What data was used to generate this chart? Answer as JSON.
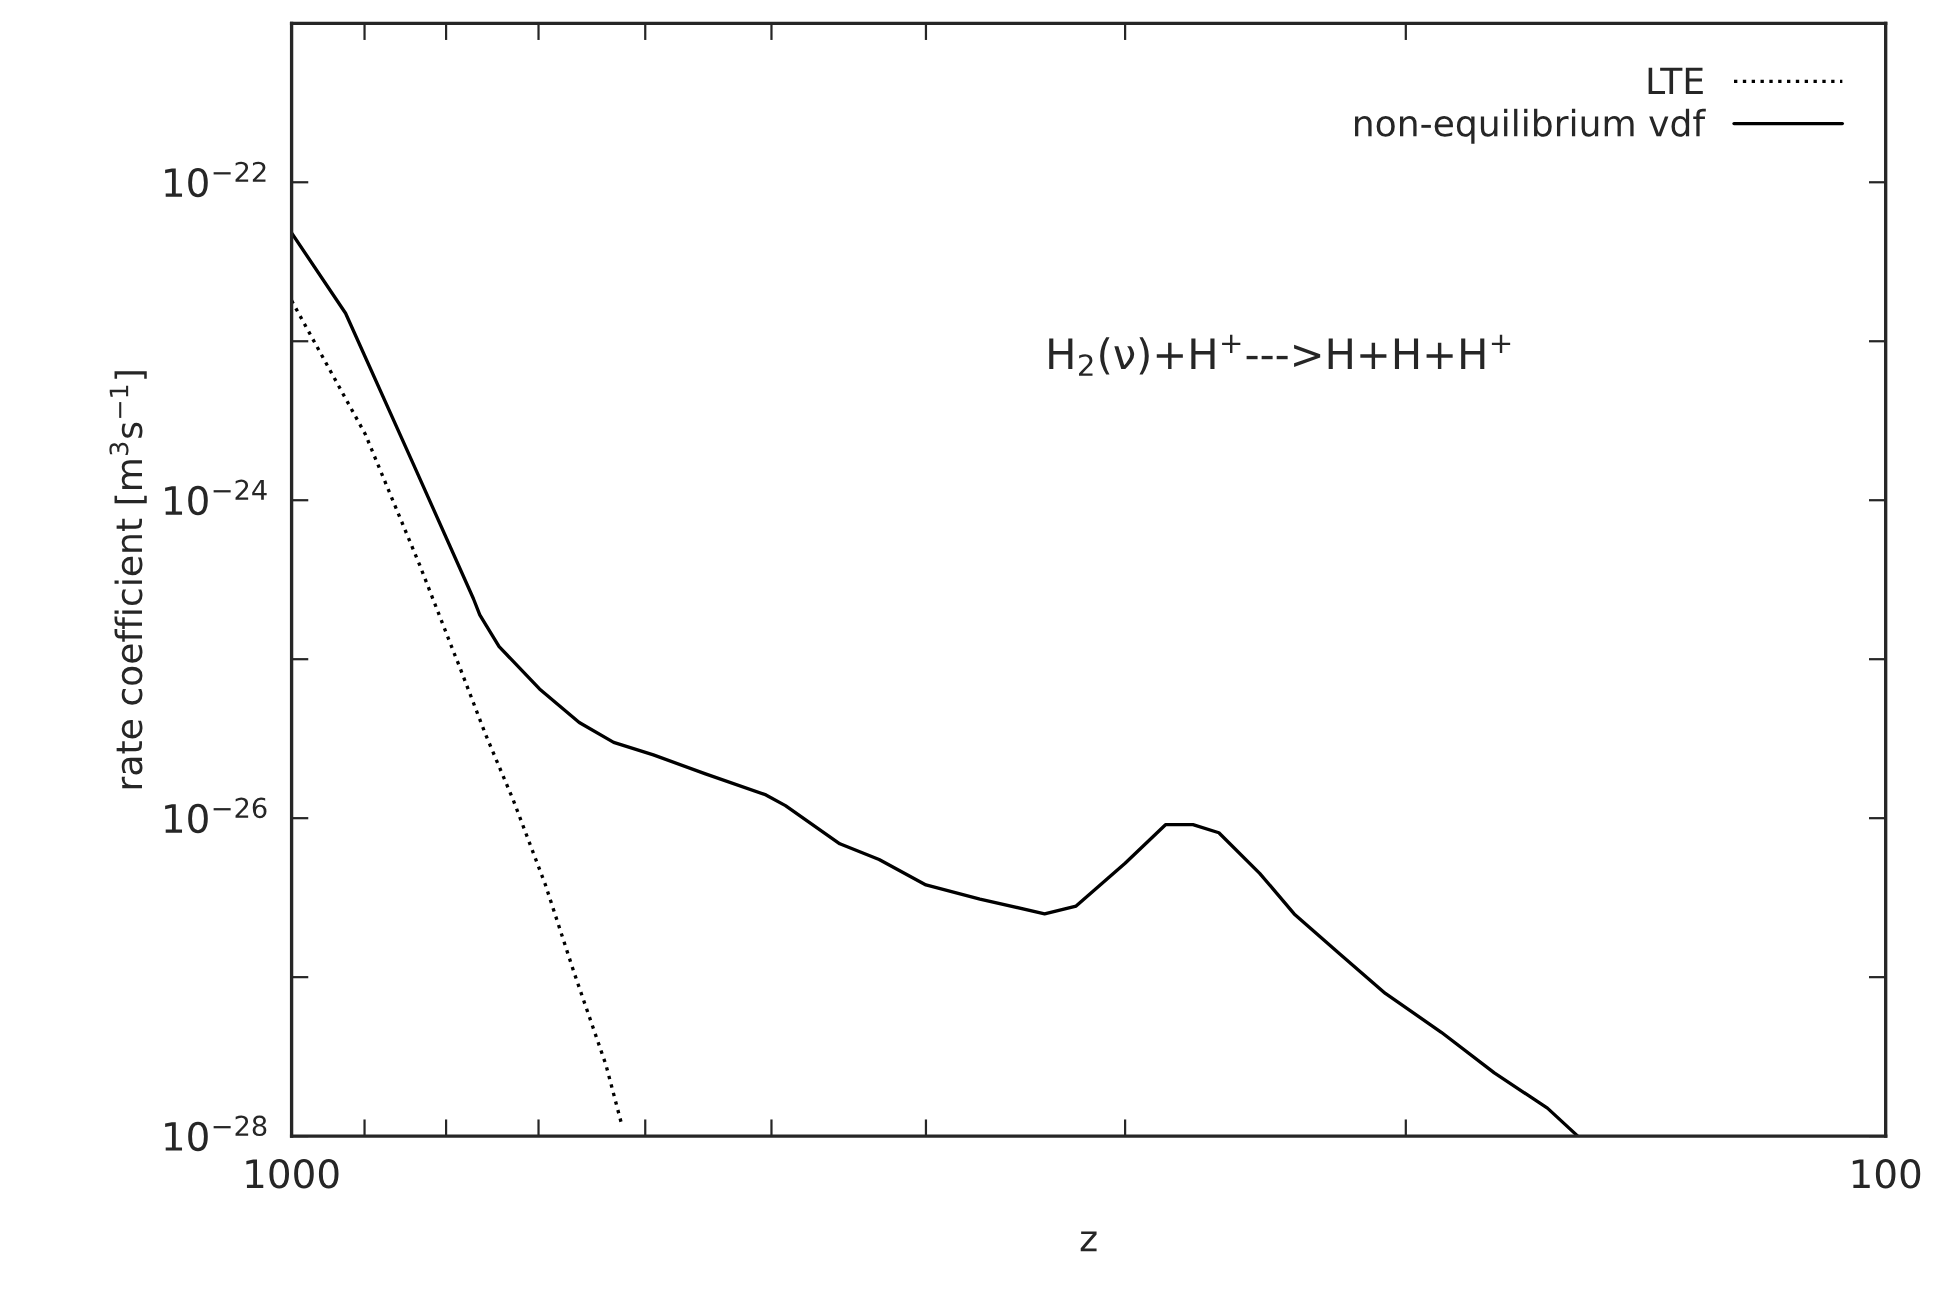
{
  "chart_data": {
    "type": "line",
    "xlabel": "z",
    "ylabel": "rate coefficient [m$^{3}$s$^{−1}$]",
    "annotations": [
      "H$_{2}$(ν)+H$^{+}$--->H+H+H$^{+}$"
    ],
    "log": "xy",
    "xlim": [
      1000,
      100
    ],
    "ylim": [
      1e-28,
      1e-21
    ],
    "xticks": [
      1000,
      {
        "value": 900,
        "label": null
      },
      {
        "value": 800,
        "label": null
      },
      {
        "value": 700,
        "label": null
      },
      {
        "value": 600,
        "label": null
      },
      {
        "value": 500,
        "label": null
      },
      {
        "value": 400,
        "label": null
      },
      {
        "value": 300,
        "label": null
      },
      {
        "value": 200,
        "label": null
      },
      100
    ],
    "yticks": [
      {
        "value": 1e-28,
        "label": "10$^{−28}$"
      },
      {
        "value": 1e-27,
        "label": null
      },
      {
        "value": 1e-26,
        "label": "10$^{−26}$"
      },
      {
        "value": 1e-25,
        "label": null
      },
      {
        "value": 1e-24,
        "label": "10$^{−24}$"
      },
      {
        "value": 1e-23,
        "label": null
      },
      {
        "value": 1e-22,
        "label": "10$^{−22}$"
      },
      {
        "value": 1e-21,
        "label": null
      }
    ],
    "grid": false,
    "legend": "top right",
    "marker": "none",
    "series": [
      {
        "name": "LTE",
        "color": "#000000",
        "line_style": "dotted",
        "x": [
          1000,
          899,
          831,
          791,
          785,
          756,
          726,
          693,
          665,
          635,
          621
        ],
        "values": [
          1.8e-23,
          2.6e-24,
          3.9e-25,
          1.1e-25,
          9.1e-26,
          3.4e-26,
          1.3e-26,
          3.8e-27,
          1.07e-27,
          2.8e-28,
          1.2e-28
        ]
      },
      {
        "name": "non-equilibrium vdf",
        "color": "#000000",
        "line_style": "solid",
        "x": [
          1000,
          925,
          839,
          769,
          762,
          741,
          699,
          660,
          628,
          593,
          550,
          504,
          490,
          453,
          428,
          400,
          370,
          337,
          322,
          300,
          283,
          272,
          262,
          247,
          235,
          220,
          206,
          190,
          176,
          163,
          156
        ],
        "values": [
          4.8e-23,
          1.5e-23,
          1.7e-24,
          2.4e-25,
          1.9e-25,
          1.2e-25,
          6.5e-26,
          4e-26,
          3e-26,
          2.5e-26,
          1.9e-26,
          1.4e-26,
          1.2e-26,
          6.9e-27,
          5.5e-27,
          3.8e-27,
          3.1e-27,
          2.5e-27,
          2.8e-27,
          5.2e-27,
          9.1e-27,
          9.1e-27,
          8.1e-27,
          4.5e-27,
          2.5e-27,
          1.4e-27,
          7.9e-28,
          4.5e-28,
          2.5e-28,
          1.5e-28,
          1e-28
        ]
      }
    ]
  }
}
